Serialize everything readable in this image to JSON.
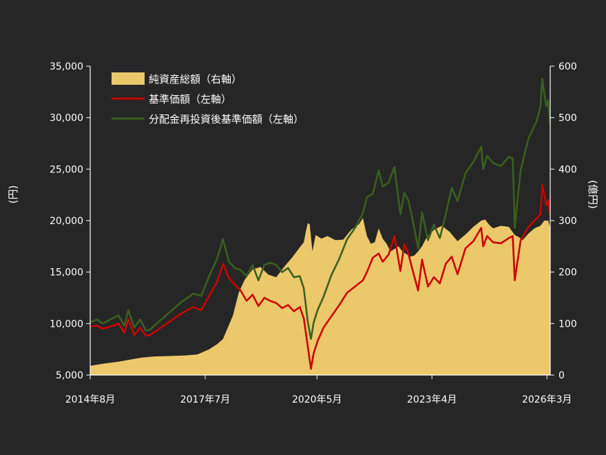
{
  "colors": {
    "background": "#262626",
    "axis": "#ffffff",
    "aum": "#EBC86A",
    "nav": "#CC0000",
    "reinvested": "#3A5F1E"
  },
  "chart_data": {
    "type": "area",
    "xlabel": "",
    "ylabel": "(円)",
    "y2label": "(億円)",
    "x_ticks": [
      {
        "label": "2014年8月",
        "x": 2014.583
      },
      {
        "label": "2017年7月",
        "x": 2017.5
      },
      {
        "label": "2020年5月",
        "x": 2020.333
      },
      {
        "label": "2023年4月",
        "x": 2023.25
      },
      {
        "label": "2026年3月",
        "x": 2026.167
      }
    ],
    "xlim": [
      2014.583,
      2026.25
    ],
    "ylim": [
      5000,
      35000
    ],
    "yticks": [
      5000,
      10000,
      15000,
      20000,
      25000,
      30000,
      35000
    ],
    "ytick_labels": [
      "5,000",
      "10,000",
      "15,000",
      "20,000",
      "25,000",
      "30,000",
      "35,000"
    ],
    "y2lim": [
      0,
      600
    ],
    "y2ticks": [
      0,
      100,
      200,
      300,
      400,
      500,
      600
    ],
    "y2tick_labels": [
      "0",
      "100",
      "200",
      "300",
      "400",
      "500",
      "600"
    ],
    "legend_position": "top-left",
    "series": [
      {
        "name": "純資産総額（右軸）",
        "kind": "area",
        "axis": "right",
        "color": "#EBC86A",
        "x": [
          2014.58,
          2014.9,
          2015.3,
          2015.6,
          2015.9,
          2016.2,
          2016.6,
          2017.0,
          2017.3,
          2017.6,
          2017.8,
          2017.95,
          2018.05,
          2018.2,
          2018.35,
          2018.5,
          2018.7,
          2018.9,
          2019.1,
          2019.3,
          2019.5,
          2019.7,
          2019.9,
          2020.0,
          2020.05,
          2020.1,
          2020.15,
          2020.22,
          2020.3,
          2020.45,
          2020.6,
          2020.8,
          2021.0,
          2021.2,
          2021.4,
          2021.5,
          2021.6,
          2021.7,
          2021.8,
          2021.9,
          2022.0,
          2022.1,
          2022.2,
          2022.3,
          2022.4,
          2022.5,
          2022.6,
          2022.7,
          2022.8,
          2022.9,
          2023.0,
          2023.1,
          2023.2,
          2023.3,
          2023.5,
          2023.7,
          2023.9,
          2024.1,
          2024.3,
          2024.5,
          2024.6,
          2024.7,
          2024.8,
          2025.0,
          2025.2,
          2025.35,
          2025.45,
          2025.55,
          2025.7,
          2025.85,
          2026.0,
          2026.1,
          2026.2,
          2026.25
        ],
        "y": [
          18,
          22,
          26,
          30,
          34,
          36,
          37,
          38,
          40,
          50,
          60,
          70,
          88,
          115,
          160,
          185,
          205,
          210,
          195,
          190,
          210,
          228,
          248,
          258,
          278,
          295,
          293,
          240,
          272,
          265,
          270,
          262,
          263,
          282,
          293,
          305,
          270,
          255,
          258,
          285,
          265,
          255,
          240,
          245,
          250,
          240,
          235,
          230,
          232,
          240,
          250,
          265,
          274,
          282,
          290,
          278,
          260,
          273,
          288,
          300,
          302,
          292,
          285,
          290,
          288,
          272,
          268,
          262,
          275,
          285,
          290,
          300,
          300,
          285
        ]
      },
      {
        "name": "基準価額（左軸）",
        "kind": "line",
        "axis": "left",
        "color": "#CC0000",
        "x": [
          2014.58,
          2014.75,
          2014.9,
          2015.1,
          2015.3,
          2015.45,
          2015.55,
          2015.7,
          2015.85,
          2016.0,
          2016.1,
          2016.3,
          2016.6,
          2016.9,
          2017.2,
          2017.4,
          2017.6,
          2017.8,
          2017.95,
          2018.1,
          2018.25,
          2018.4,
          2018.55,
          2018.7,
          2018.85,
          2019.0,
          2019.15,
          2019.3,
          2019.45,
          2019.6,
          2019.75,
          2019.9,
          2020.0,
          2020.1,
          2020.18,
          2020.25,
          2020.35,
          2020.5,
          2020.7,
          2020.9,
          2021.1,
          2021.3,
          2021.5,
          2021.6,
          2021.75,
          2021.9,
          2022.0,
          2022.15,
          2022.3,
          2022.45,
          2022.55,
          2022.65,
          2022.8,
          2022.9,
          2023.0,
          2023.15,
          2023.3,
          2023.45,
          2023.6,
          2023.75,
          2023.9,
          2024.1,
          2024.3,
          2024.5,
          2024.55,
          2024.65,
          2024.8,
          2025.0,
          2025.2,
          2025.3,
          2025.35,
          2025.4,
          2025.5,
          2025.7,
          2025.9,
          2026.0,
          2026.05,
          2026.1,
          2026.15,
          2026.2,
          2026.25
        ],
        "y": [
          9700,
          9800,
          9500,
          9700,
          10000,
          9100,
          10400,
          8900,
          9600,
          8800,
          8900,
          9400,
          10200,
          11000,
          11600,
          11300,
          12700,
          14000,
          15800,
          14400,
          13800,
          13200,
          12200,
          12800,
          11700,
          12500,
          12200,
          12000,
          11500,
          11800,
          11200,
          11600,
          10500,
          7800,
          5600,
          7100,
          8300,
          9600,
          10700,
          11800,
          13000,
          13600,
          14200,
          15000,
          16400,
          16800,
          16000,
          16700,
          18500,
          15100,
          17700,
          16800,
          14600,
          13200,
          16200,
          13600,
          14500,
          13900,
          15800,
          16500,
          14800,
          17300,
          18000,
          19300,
          17500,
          18500,
          17900,
          17800,
          18300,
          18500,
          14200,
          15500,
          18100,
          19400,
          20200,
          20600,
          23500,
          22500,
          21500,
          22000,
          20400
        ]
      },
      {
        "name": "分配金再投資後基準価額（左軸）",
        "kind": "line",
        "axis": "left",
        "color": "#3A5F1E",
        "x": [
          2014.58,
          2014.75,
          2014.9,
          2015.1,
          2015.3,
          2015.45,
          2015.55,
          2015.7,
          2015.85,
          2016.0,
          2016.1,
          2016.3,
          2016.6,
          2016.9,
          2017.2,
          2017.4,
          2017.6,
          2017.8,
          2017.95,
          2018.1,
          2018.25,
          2018.4,
          2018.55,
          2018.7,
          2018.85,
          2019.0,
          2019.15,
          2019.3,
          2019.45,
          2019.6,
          2019.75,
          2019.9,
          2020.0,
          2020.1,
          2020.18,
          2020.25,
          2020.35,
          2020.5,
          2020.7,
          2020.9,
          2021.1,
          2021.3,
          2021.5,
          2021.6,
          2021.75,
          2021.9,
          2022.0,
          2022.15,
          2022.3,
          2022.45,
          2022.55,
          2022.65,
          2022.8,
          2022.9,
          2023.0,
          2023.15,
          2023.3,
          2023.45,
          2023.6,
          2023.75,
          2023.9,
          2024.1,
          2024.3,
          2024.5,
          2024.55,
          2024.65,
          2024.8,
          2025.0,
          2025.2,
          2025.3,
          2025.35,
          2025.4,
          2025.5,
          2025.7,
          2025.9,
          2026.0,
          2026.05,
          2026.1,
          2026.15,
          2026.2,
          2026.25
        ],
        "y": [
          10100,
          10400,
          10000,
          10400,
          10800,
          9800,
          11300,
          9600,
          10400,
          9300,
          9400,
          10100,
          11100,
          12100,
          12900,
          12700,
          14600,
          16300,
          18200,
          16000,
          15400,
          15200,
          14600,
          15700,
          14200,
          15700,
          15900,
          15700,
          15000,
          15400,
          14500,
          14600,
          13400,
          10200,
          8500,
          10100,
          11300,
          12600,
          14700,
          16300,
          18200,
          19300,
          20700,
          22300,
          22600,
          24900,
          23300,
          23700,
          25200,
          20600,
          22700,
          22000,
          19300,
          17300,
          20800,
          18100,
          19600,
          18300,
          20600,
          23200,
          21900,
          24600,
          25700,
          27200,
          25000,
          26300,
          25600,
          25300,
          26200,
          26000,
          19300,
          21200,
          24900,
          28000,
          29600,
          31000,
          33800,
          32300,
          31100,
          31700,
          29300
        ]
      }
    ]
  }
}
